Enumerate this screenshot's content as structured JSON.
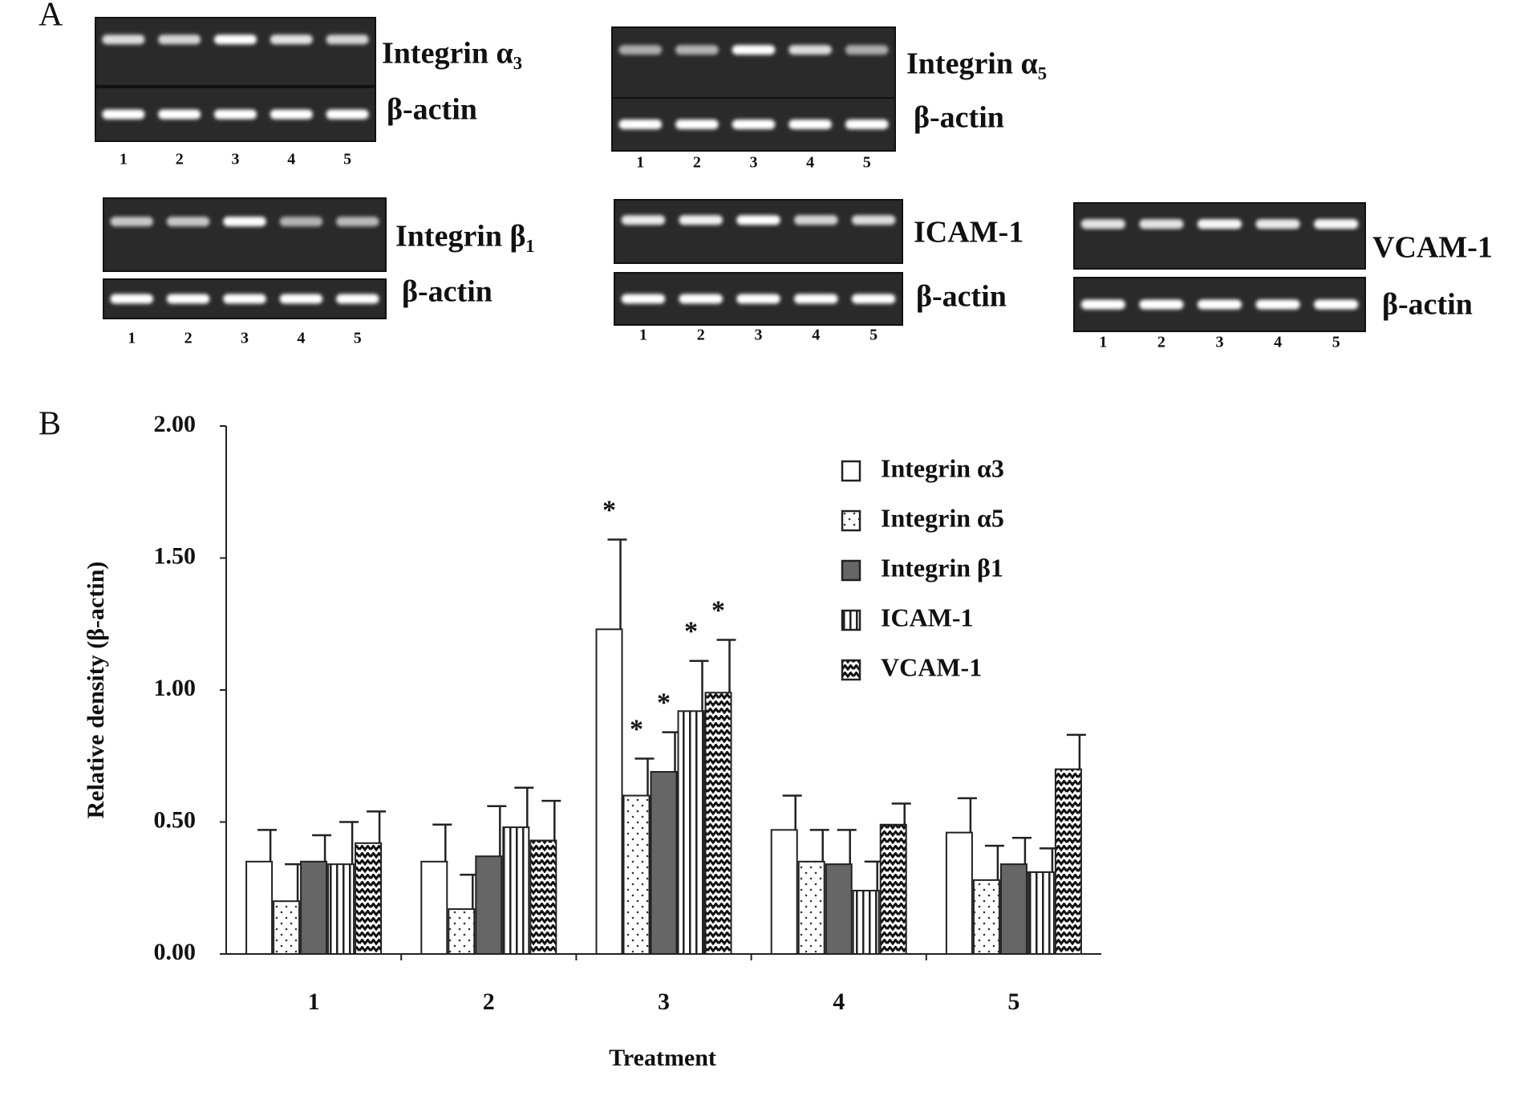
{
  "panel_a": {
    "label": "A",
    "gels": [
      {
        "target": "Integrin α₃",
        "control": "β-actin",
        "lanes": [
          "1",
          "2",
          "3",
          "4",
          "5"
        ]
      },
      {
        "target": "Integrin α₅",
        "control": "β-actin",
        "lanes": [
          "1",
          "2",
          "3",
          "4",
          "5"
        ]
      },
      {
        "target": "Integrin β₁",
        "control": "β-actin",
        "lanes": [
          "1",
          "2",
          "3",
          "4",
          "5"
        ]
      },
      {
        "target": "ICAM-1",
        "control": "β-actin",
        "lanes": [
          "1",
          "2",
          "3",
          "4",
          "5"
        ]
      },
      {
        "target": "VCAM-1",
        "control": "β-actin",
        "lanes": [
          "1",
          "2",
          "3",
          "4",
          "5"
        ]
      }
    ]
  },
  "chart_data": {
    "type": "bar",
    "panel_label": "B",
    "x_label": "Treatment",
    "y_label": "Relative density (β-actin)",
    "categories": [
      "1",
      "2",
      "3",
      "4",
      "5"
    ],
    "ylim": [
      0,
      2
    ],
    "yticks": [
      {
        "value": 0,
        "label": "0.00"
      },
      {
        "value": 0.5,
        "label": "0.50"
      },
      {
        "value": 1,
        "label": "1.00"
      },
      {
        "value": 1.5,
        "label": "1.50"
      },
      {
        "value": 2,
        "label": "2.00"
      }
    ],
    "series": [
      {
        "name": "Integrin α3",
        "color": "#ffffff",
        "pattern": "none",
        "values": [
          0.35,
          0.35,
          1.23,
          0.47,
          0.46
        ],
        "errors": [
          0.12,
          0.14,
          0.34,
          0.13,
          0.13
        ],
        "annotations": [
          null,
          null,
          "*",
          null,
          null
        ]
      },
      {
        "name": "Integrin α5",
        "color": "#ffffff",
        "pattern": "dots",
        "values": [
          0.2,
          0.17,
          0.6,
          0.35,
          0.28
        ],
        "errors": [
          0.14,
          0.13,
          0.14,
          0.12,
          0.13
        ],
        "annotations": [
          null,
          null,
          "*",
          null,
          null
        ]
      },
      {
        "name": "Integrin β1",
        "color": "#666666",
        "pattern": "solid",
        "values": [
          0.35,
          0.37,
          0.69,
          0.34,
          0.34
        ],
        "errors": [
          0.1,
          0.19,
          0.15,
          0.13,
          0.1
        ],
        "annotations": [
          null,
          null,
          "*",
          null,
          null
        ]
      },
      {
        "name": "ICAM-1",
        "color": "#ffffff",
        "pattern": "vertical-lines",
        "values": [
          0.34,
          0.48,
          0.92,
          0.24,
          0.31
        ],
        "errors": [
          0.16,
          0.15,
          0.19,
          0.11,
          0.09
        ],
        "annotations": [
          null,
          null,
          "*",
          null,
          null
        ]
      },
      {
        "name": "VCAM-1",
        "color": "#ffffff",
        "pattern": "zigzag",
        "values": [
          0.42,
          0.43,
          0.99,
          0.49,
          0.7
        ],
        "errors": [
          0.12,
          0.15,
          0.2,
          0.08,
          0.13
        ],
        "annotations": [
          null,
          null,
          "*",
          null,
          null
        ]
      }
    ]
  }
}
